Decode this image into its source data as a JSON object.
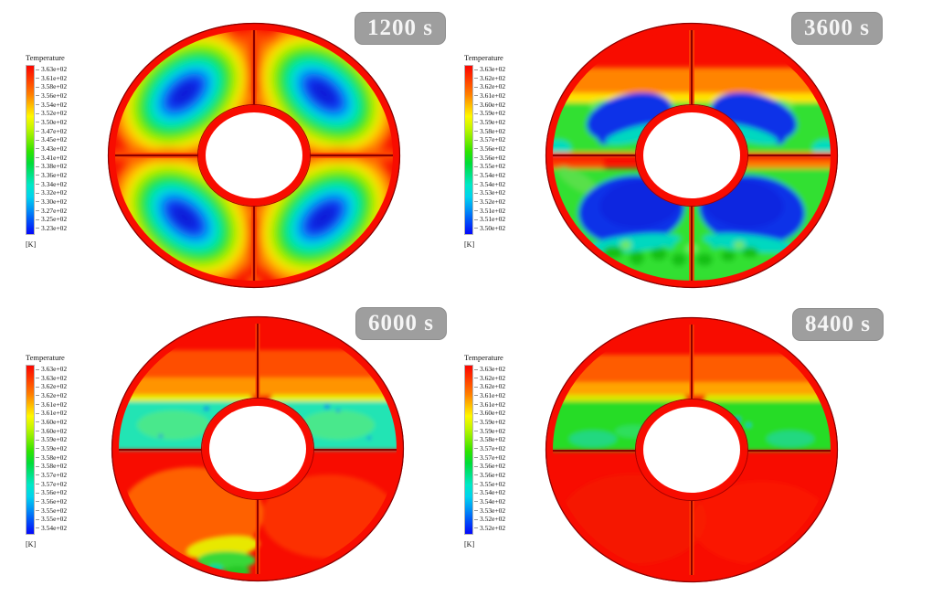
{
  "figure": {
    "background": "#ffffff",
    "description_domain": "CFD temperature contour snapshots of a baffled annulus at four times"
  },
  "palette": {
    "colormap_stops": [
      "#fb0500",
      "#ff7e00",
      "#fff800",
      "#7bec00",
      "#2ee300",
      "#00e287",
      "#00e8c8",
      "#0096f6",
      "#0408fa"
    ],
    "wall_red": "#f80c00",
    "divider_dark_red": "#8b0000",
    "hole_fill": "#ffffff"
  },
  "badge": {
    "background": "#9e9e9e",
    "border": "#8d8d8d",
    "text_color": "#f5f5f5"
  },
  "panels": [
    {
      "time_label": "1200 s",
      "legend": {
        "title": "Temperature",
        "unit": "[K]",
        "values": [
          "3.63e+02",
          "3.61e+02",
          "3.58e+02",
          "3.56e+02",
          "3.54e+02",
          "3.52e+02",
          "3.50e+02",
          "3.47e+02",
          "3.45e+02",
          "3.43e+02",
          "3.41e+02",
          "3.38e+02",
          "3.36e+02",
          "3.34e+02",
          "3.32e+02",
          "3.30e+02",
          "3.27e+02",
          "3.25e+02",
          "3.23e+02"
        ]
      }
    },
    {
      "time_label": "3600 s",
      "legend": {
        "title": "Temperature",
        "unit": "[K]",
        "values": [
          "3.63e+02",
          "3.62e+02",
          "3.62e+02",
          "3.61e+02",
          "3.60e+02",
          "3.59e+02",
          "3.59e+02",
          "3.58e+02",
          "3.57e+02",
          "3.56e+02",
          "3.56e+02",
          "3.55e+02",
          "3.54e+02",
          "3.54e+02",
          "3.53e+02",
          "3.52e+02",
          "3.51e+02",
          "3.51e+02",
          "3.50e+02"
        ]
      }
    },
    {
      "time_label": "6000 s",
      "legend": {
        "title": "Temperature",
        "unit": "[K]",
        "values": [
          "3.63e+02",
          "3.63e+02",
          "3.62e+02",
          "3.62e+02",
          "3.61e+02",
          "3.61e+02",
          "3.60e+02",
          "3.60e+02",
          "3.59e+02",
          "3.59e+02",
          "3.58e+02",
          "3.58e+02",
          "3.57e+02",
          "3.57e+02",
          "3.56e+02",
          "3.56e+02",
          "3.55e+02",
          "3.55e+02",
          "3.54e+02"
        ]
      }
    },
    {
      "time_label": "8400 s",
      "legend": {
        "title": "Temperature",
        "unit": "[K]",
        "values": [
          "3.63e+02",
          "3.62e+02",
          "3.62e+02",
          "3.61e+02",
          "3.61e+02",
          "3.60e+02",
          "3.59e+02",
          "3.59e+02",
          "3.58e+02",
          "3.57e+02",
          "3.57e+02",
          "3.56e+02",
          "3.56e+02",
          "3.55e+02",
          "3.54e+02",
          "3.54e+02",
          "3.53e+02",
          "3.52e+02",
          "3.52e+02"
        ]
      }
    }
  ],
  "chart_data": [
    {
      "type": "heatmap",
      "title": "1200 s",
      "legend_title": "Temperature",
      "unit": "K",
      "colorbar_tick_labels": [
        "3.63e+02",
        "3.61e+02",
        "3.58e+02",
        "3.56e+02",
        "3.54e+02",
        "3.52e+02",
        "3.50e+02",
        "3.47e+02",
        "3.45e+02",
        "3.43e+02",
        "3.41e+02",
        "3.38e+02",
        "3.36e+02",
        "3.34e+02",
        "3.32e+02",
        "3.30e+02",
        "3.27e+02",
        "3.25e+02",
        "3.23e+02"
      ],
      "colorbar_range_K": [
        323,
        363
      ],
      "colormap": "rainbow, blue=cold to red=hot",
      "features": "annulus split into 4 quadrants by cross baffles; hot red walls/baffles; each quadrant holds one tilted cold blue vortex core ringed by cyan-green-yellow"
    },
    {
      "type": "heatmap",
      "title": "3600 s",
      "legend_title": "Temperature",
      "unit": "K",
      "colorbar_tick_labels": [
        "3.63e+02",
        "3.62e+02",
        "3.62e+02",
        "3.61e+02",
        "3.60e+02",
        "3.59e+02",
        "3.59e+02",
        "3.58e+02",
        "3.57e+02",
        "3.56e+02",
        "3.56e+02",
        "3.55e+02",
        "3.54e+02",
        "3.54e+02",
        "3.53e+02",
        "3.52e+02",
        "3.51e+02",
        "3.51e+02",
        "3.50e+02"
      ],
      "colorbar_range_K": [
        350,
        363
      ],
      "colormap": "rainbow, blue=cold to red=hot",
      "features": "turbulent green field; curved blue cold wings at top of upper quadrants, large blue lobes with wavy fringes in lower quadrants, red band at top and along mid-plane baffle"
    },
    {
      "type": "heatmap",
      "title": "6000 s",
      "legend_title": "Temperature",
      "unit": "K",
      "colorbar_tick_labels": [
        "3.63e+02",
        "3.63e+02",
        "3.62e+02",
        "3.62e+02",
        "3.61e+02",
        "3.61e+02",
        "3.60e+02",
        "3.60e+02",
        "3.59e+02",
        "3.59e+02",
        "3.58e+02",
        "3.58e+02",
        "3.57e+02",
        "3.57e+02",
        "3.56e+02",
        "3.56e+02",
        "3.55e+02",
        "3.55e+02",
        "3.54e+02"
      ],
      "colorbar_range_K": [
        354,
        363
      ],
      "colormap": "rainbow, blue=cold to red=hot",
      "features": "mostly hot red; stratified cyan cold layer fills upper quadrants above the horizontal baffle under a yellow interface; small yellow-green patch at bottom-left rim"
    },
    {
      "type": "heatmap",
      "title": "8400 s",
      "legend_title": "Temperature",
      "unit": "K",
      "colorbar_tick_labels": [
        "3.63e+02",
        "3.62e+02",
        "3.62e+02",
        "3.61e+02",
        "3.61e+02",
        "3.60e+02",
        "3.59e+02",
        "3.59e+02",
        "3.58e+02",
        "3.57e+02",
        "3.57e+02",
        "3.56e+02",
        "3.56e+02",
        "3.55e+02",
        "3.54e+02",
        "3.54e+02",
        "3.53e+02",
        "3.52e+02",
        "3.52e+02"
      ],
      "colorbar_range_K": [
        352,
        363
      ],
      "colormap": "rainbow, blue=cold to red=hot",
      "features": "mostly hot red; uniform green stratified layer in upper quadrants above the horizontal baffle; lower half entirely hot red"
    }
  ]
}
